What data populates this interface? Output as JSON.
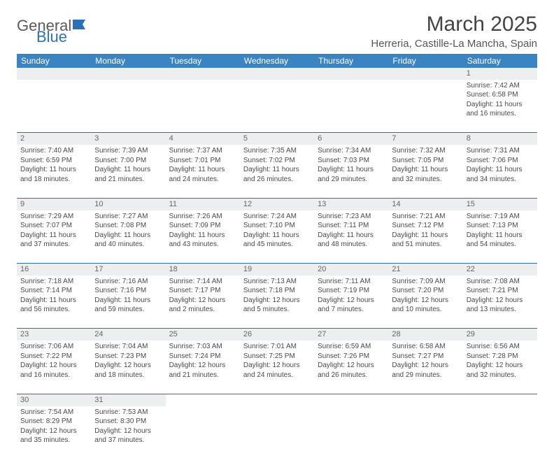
{
  "logo": {
    "text1": "General",
    "text2": "Blue"
  },
  "title": "March 2025",
  "location": "Herreria, Castille-La Mancha, Spain",
  "colors": {
    "header_bg": "#3b84c4",
    "border": "#2a72b5",
    "daynum_bg": "#eceeef",
    "text": "#4a4a4a"
  },
  "day_headers": [
    "Sunday",
    "Monday",
    "Tuesday",
    "Wednesday",
    "Thursday",
    "Friday",
    "Saturday"
  ],
  "weeks": [
    [
      null,
      null,
      null,
      null,
      null,
      null,
      {
        "n": "1",
        "sr": "Sunrise: 7:42 AM",
        "ss": "Sunset: 6:58 PM",
        "dl1": "Daylight: 11 hours",
        "dl2": "and 16 minutes."
      }
    ],
    [
      {
        "n": "2",
        "sr": "Sunrise: 7:40 AM",
        "ss": "Sunset: 6:59 PM",
        "dl1": "Daylight: 11 hours",
        "dl2": "and 18 minutes."
      },
      {
        "n": "3",
        "sr": "Sunrise: 7:39 AM",
        "ss": "Sunset: 7:00 PM",
        "dl1": "Daylight: 11 hours",
        "dl2": "and 21 minutes."
      },
      {
        "n": "4",
        "sr": "Sunrise: 7:37 AM",
        "ss": "Sunset: 7:01 PM",
        "dl1": "Daylight: 11 hours",
        "dl2": "and 24 minutes."
      },
      {
        "n": "5",
        "sr": "Sunrise: 7:35 AM",
        "ss": "Sunset: 7:02 PM",
        "dl1": "Daylight: 11 hours",
        "dl2": "and 26 minutes."
      },
      {
        "n": "6",
        "sr": "Sunrise: 7:34 AM",
        "ss": "Sunset: 7:03 PM",
        "dl1": "Daylight: 11 hours",
        "dl2": "and 29 minutes."
      },
      {
        "n": "7",
        "sr": "Sunrise: 7:32 AM",
        "ss": "Sunset: 7:05 PM",
        "dl1": "Daylight: 11 hours",
        "dl2": "and 32 minutes."
      },
      {
        "n": "8",
        "sr": "Sunrise: 7:31 AM",
        "ss": "Sunset: 7:06 PM",
        "dl1": "Daylight: 11 hours",
        "dl2": "and 34 minutes."
      }
    ],
    [
      {
        "n": "9",
        "sr": "Sunrise: 7:29 AM",
        "ss": "Sunset: 7:07 PM",
        "dl1": "Daylight: 11 hours",
        "dl2": "and 37 minutes."
      },
      {
        "n": "10",
        "sr": "Sunrise: 7:27 AM",
        "ss": "Sunset: 7:08 PM",
        "dl1": "Daylight: 11 hours",
        "dl2": "and 40 minutes."
      },
      {
        "n": "11",
        "sr": "Sunrise: 7:26 AM",
        "ss": "Sunset: 7:09 PM",
        "dl1": "Daylight: 11 hours",
        "dl2": "and 43 minutes."
      },
      {
        "n": "12",
        "sr": "Sunrise: 7:24 AM",
        "ss": "Sunset: 7:10 PM",
        "dl1": "Daylight: 11 hours",
        "dl2": "and 45 minutes."
      },
      {
        "n": "13",
        "sr": "Sunrise: 7:23 AM",
        "ss": "Sunset: 7:11 PM",
        "dl1": "Daylight: 11 hours",
        "dl2": "and 48 minutes."
      },
      {
        "n": "14",
        "sr": "Sunrise: 7:21 AM",
        "ss": "Sunset: 7:12 PM",
        "dl1": "Daylight: 11 hours",
        "dl2": "and 51 minutes."
      },
      {
        "n": "15",
        "sr": "Sunrise: 7:19 AM",
        "ss": "Sunset: 7:13 PM",
        "dl1": "Daylight: 11 hours",
        "dl2": "and 54 minutes."
      }
    ],
    [
      {
        "n": "16",
        "sr": "Sunrise: 7:18 AM",
        "ss": "Sunset: 7:14 PM",
        "dl1": "Daylight: 11 hours",
        "dl2": "and 56 minutes."
      },
      {
        "n": "17",
        "sr": "Sunrise: 7:16 AM",
        "ss": "Sunset: 7:16 PM",
        "dl1": "Daylight: 11 hours",
        "dl2": "and 59 minutes."
      },
      {
        "n": "18",
        "sr": "Sunrise: 7:14 AM",
        "ss": "Sunset: 7:17 PM",
        "dl1": "Daylight: 12 hours",
        "dl2": "and 2 minutes."
      },
      {
        "n": "19",
        "sr": "Sunrise: 7:13 AM",
        "ss": "Sunset: 7:18 PM",
        "dl1": "Daylight: 12 hours",
        "dl2": "and 5 minutes."
      },
      {
        "n": "20",
        "sr": "Sunrise: 7:11 AM",
        "ss": "Sunset: 7:19 PM",
        "dl1": "Daylight: 12 hours",
        "dl2": "and 7 minutes."
      },
      {
        "n": "21",
        "sr": "Sunrise: 7:09 AM",
        "ss": "Sunset: 7:20 PM",
        "dl1": "Daylight: 12 hours",
        "dl2": "and 10 minutes."
      },
      {
        "n": "22",
        "sr": "Sunrise: 7:08 AM",
        "ss": "Sunset: 7:21 PM",
        "dl1": "Daylight: 12 hours",
        "dl2": "and 13 minutes."
      }
    ],
    [
      {
        "n": "23",
        "sr": "Sunrise: 7:06 AM",
        "ss": "Sunset: 7:22 PM",
        "dl1": "Daylight: 12 hours",
        "dl2": "and 16 minutes."
      },
      {
        "n": "24",
        "sr": "Sunrise: 7:04 AM",
        "ss": "Sunset: 7:23 PM",
        "dl1": "Daylight: 12 hours",
        "dl2": "and 18 minutes."
      },
      {
        "n": "25",
        "sr": "Sunrise: 7:03 AM",
        "ss": "Sunset: 7:24 PM",
        "dl1": "Daylight: 12 hours",
        "dl2": "and 21 minutes."
      },
      {
        "n": "26",
        "sr": "Sunrise: 7:01 AM",
        "ss": "Sunset: 7:25 PM",
        "dl1": "Daylight: 12 hours",
        "dl2": "and 24 minutes."
      },
      {
        "n": "27",
        "sr": "Sunrise: 6:59 AM",
        "ss": "Sunset: 7:26 PM",
        "dl1": "Daylight: 12 hours",
        "dl2": "and 26 minutes."
      },
      {
        "n": "28",
        "sr": "Sunrise: 6:58 AM",
        "ss": "Sunset: 7:27 PM",
        "dl1": "Daylight: 12 hours",
        "dl2": "and 29 minutes."
      },
      {
        "n": "29",
        "sr": "Sunrise: 6:56 AM",
        "ss": "Sunset: 7:28 PM",
        "dl1": "Daylight: 12 hours",
        "dl2": "and 32 minutes."
      }
    ],
    [
      {
        "n": "30",
        "sr": "Sunrise: 7:54 AM",
        "ss": "Sunset: 8:29 PM",
        "dl1": "Daylight: 12 hours",
        "dl2": "and 35 minutes."
      },
      {
        "n": "31",
        "sr": "Sunrise: 7:53 AM",
        "ss": "Sunset: 8:30 PM",
        "dl1": "Daylight: 12 hours",
        "dl2": "and 37 minutes."
      },
      null,
      null,
      null,
      null,
      null
    ]
  ]
}
